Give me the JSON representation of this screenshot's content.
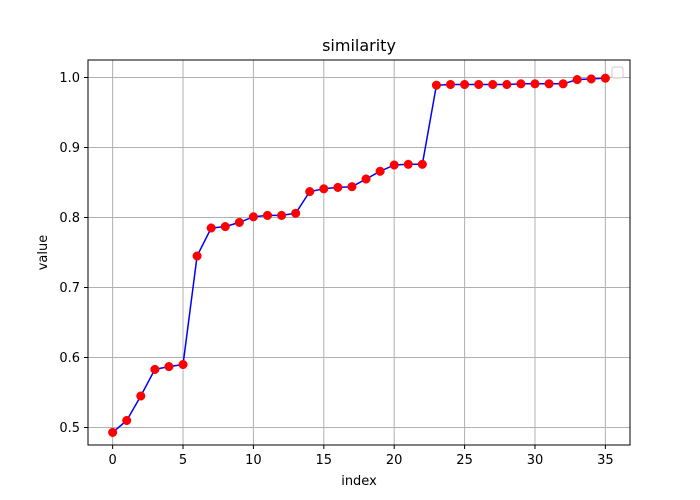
{
  "chart_data": {
    "type": "line",
    "title": "similarity",
    "xlabel": "index",
    "ylabel": "value",
    "xlim": [
      -1.75,
      36.75
    ],
    "ylim": [
      0.475,
      1.025
    ],
    "xticks": [
      0,
      5,
      10,
      15,
      20,
      25,
      30,
      35
    ],
    "yticks": [
      0.5,
      0.6,
      0.7,
      0.8,
      0.9,
      1.0
    ],
    "ytick_labels": [
      "0.5",
      "0.6",
      "0.7",
      "0.8",
      "0.9",
      "1.0"
    ],
    "grid": true,
    "legend": "top-right",
    "line_color": "#0000ff",
    "marker_color": "#ff0000",
    "series": [
      {
        "x": [
          0,
          1,
          2,
          3,
          4,
          5,
          6,
          7,
          8,
          9,
          10,
          11,
          12,
          13,
          14,
          15,
          16,
          17,
          18,
          19,
          20,
          21,
          22,
          23,
          24,
          25,
          26,
          27,
          28,
          29,
          30,
          31,
          32,
          33,
          34,
          35
        ],
        "values": [
          0.493,
          0.51,
          0.545,
          0.583,
          0.587,
          0.59,
          0.745,
          0.785,
          0.787,
          0.793,
          0.801,
          0.803,
          0.803,
          0.806,
          0.837,
          0.841,
          0.843,
          0.844,
          0.855,
          0.866,
          0.875,
          0.876,
          0.876,
          0.989,
          0.99,
          0.99,
          0.99,
          0.99,
          0.99,
          0.991,
          0.991,
          0.991,
          0.991,
          0.997,
          0.998,
          0.999
        ]
      }
    ]
  }
}
